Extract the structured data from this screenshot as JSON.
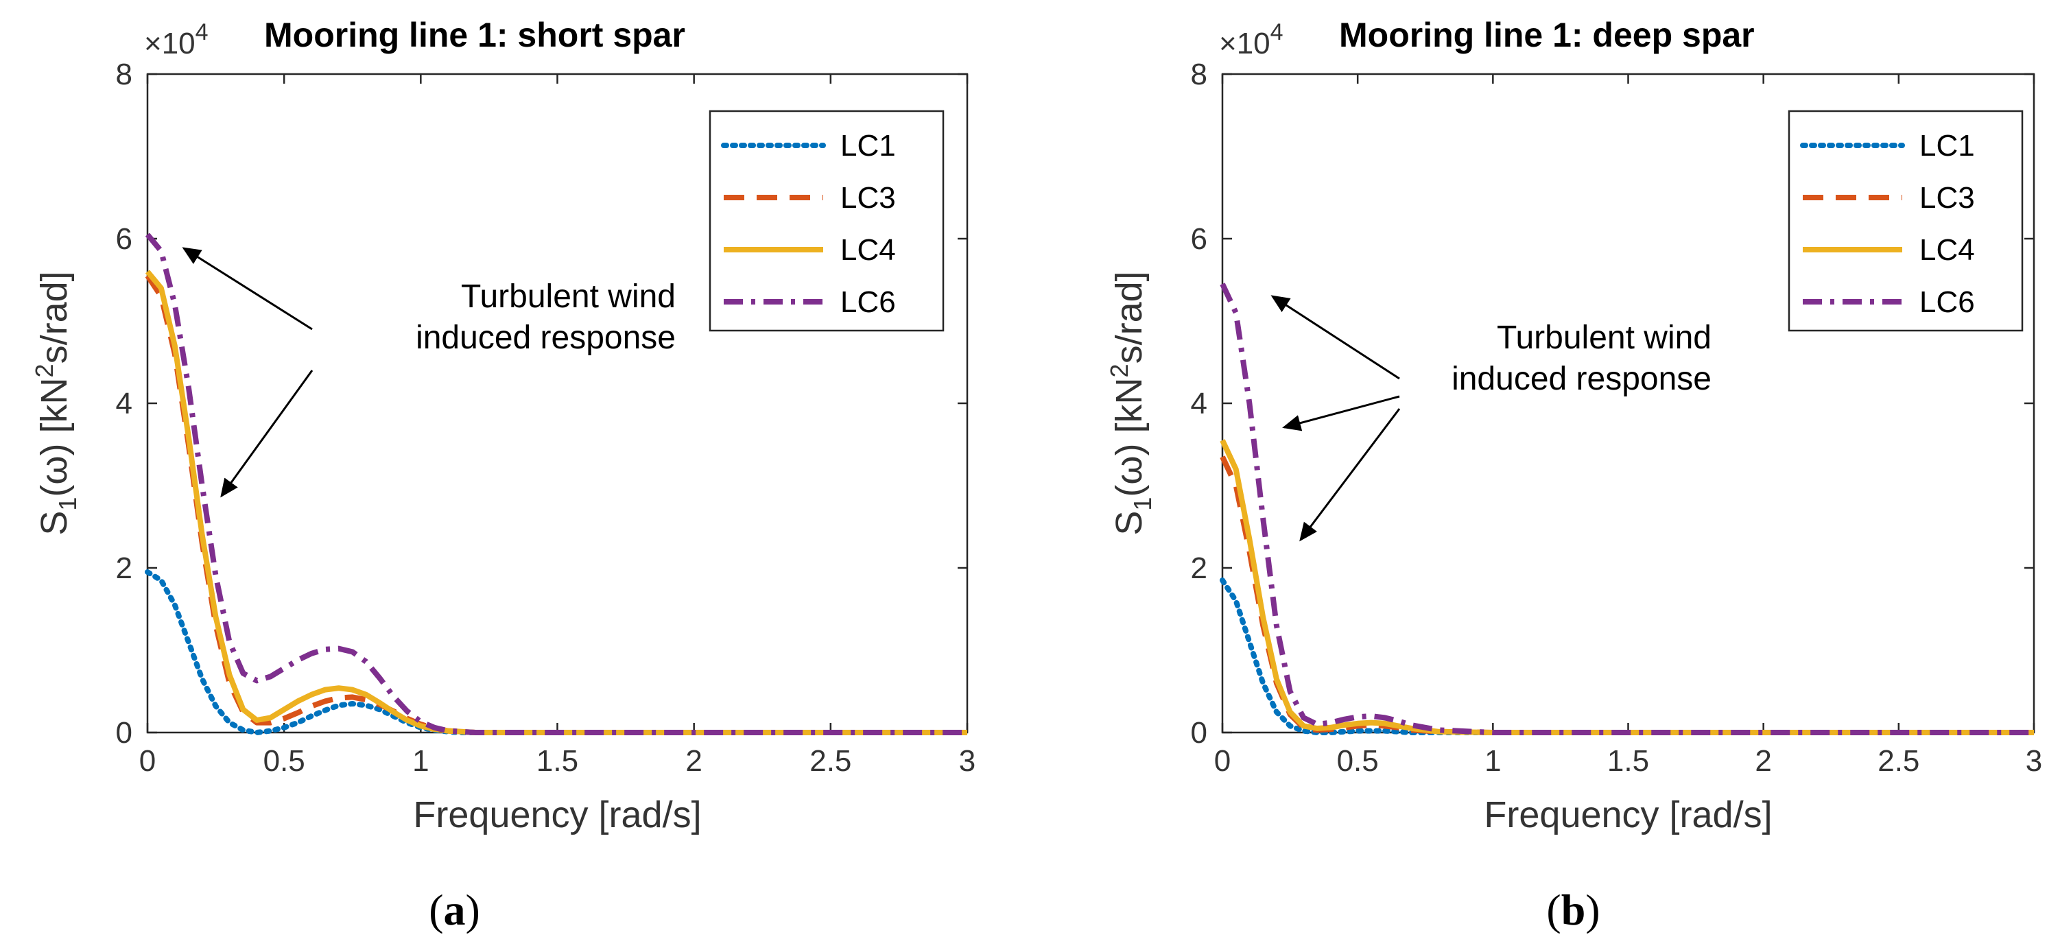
{
  "figure": {
    "ylabel_prefix": "S",
    "ylabel_sub": "1",
    "ylabel_omega": "(ω)",
    "ylabel_units_a": " [kN",
    "ylabel_units_sup": "2",
    "ylabel_units_b": "s/rad]",
    "exponent_base": "×10",
    "exponent_power": "4"
  },
  "chart_data": [
    {
      "type": "line",
      "panel_label": "(a)",
      "panel_letter": "a",
      "title": "Mooring line 1: short spar",
      "xlabel": "Frequency [rad/s]",
      "ylabel": "S1(ω) [kN2s/rad]",
      "xlim": [
        0,
        3
      ],
      "ylim": [
        0,
        8
      ],
      "y_scale": "×10^4",
      "xticks": [
        "0",
        "0.5",
        "1",
        "1.5",
        "2",
        "2.5",
        "3"
      ],
      "yticks": [
        "0",
        "2",
        "4",
        "6",
        "8"
      ],
      "legend": [
        "LC1",
        "LC3",
        "LC4",
        "LC6"
      ],
      "legend_position": "top-right",
      "annotation": [
        "Turbulent wind",
        "induced response"
      ],
      "series": [
        {
          "name": "LC1",
          "color": "#0072BD",
          "style": "dotted",
          "x": [
            0,
            0.05,
            0.1,
            0.15,
            0.2,
            0.25,
            0.3,
            0.35,
            0.4,
            0.45,
            0.5,
            0.55,
            0.6,
            0.65,
            0.7,
            0.75,
            0.8,
            0.85,
            0.9,
            0.95,
            1.0,
            1.05,
            1.1,
            1.15,
            1.2,
            1.3,
            1.5,
            2.0,
            2.5,
            3.0
          ],
          "y": [
            1.95,
            1.85,
            1.55,
            1.1,
            0.65,
            0.32,
            0.12,
            0.03,
            0.0,
            0.02,
            0.06,
            0.12,
            0.2,
            0.27,
            0.33,
            0.35,
            0.33,
            0.28,
            0.2,
            0.12,
            0.06,
            0.03,
            0.01,
            0.0,
            0.0,
            0,
            0,
            0,
            0,
            0
          ]
        },
        {
          "name": "LC3",
          "color": "#D95319",
          "style": "dashed",
          "x": [
            0,
            0.05,
            0.1,
            0.15,
            0.2,
            0.25,
            0.3,
            0.35,
            0.4,
            0.45,
            0.5,
            0.55,
            0.6,
            0.65,
            0.7,
            0.75,
            0.8,
            0.85,
            0.9,
            0.95,
            1.0,
            1.05,
            1.1,
            1.15,
            1.2,
            1.3,
            1.5,
            2.0,
            2.5,
            3.0
          ],
          "y": [
            5.55,
            5.3,
            4.6,
            3.5,
            2.3,
            1.3,
            0.6,
            0.25,
            0.12,
            0.12,
            0.17,
            0.24,
            0.32,
            0.38,
            0.42,
            0.43,
            0.4,
            0.34,
            0.26,
            0.17,
            0.1,
            0.05,
            0.02,
            0.01,
            0.0,
            0,
            0,
            0,
            0,
            0
          ]
        },
        {
          "name": "LC4",
          "color": "#EDB120",
          "style": "solid",
          "x": [
            0,
            0.05,
            0.1,
            0.15,
            0.2,
            0.25,
            0.3,
            0.35,
            0.4,
            0.45,
            0.5,
            0.55,
            0.6,
            0.65,
            0.7,
            0.75,
            0.8,
            0.85,
            0.9,
            0.95,
            1.0,
            1.05,
            1.1,
            1.15,
            1.2,
            1.3,
            1.5,
            2.0,
            2.5,
            3.0
          ],
          "y": [
            5.6,
            5.4,
            4.7,
            3.6,
            2.4,
            1.4,
            0.7,
            0.28,
            0.15,
            0.18,
            0.28,
            0.38,
            0.46,
            0.52,
            0.54,
            0.52,
            0.46,
            0.36,
            0.25,
            0.15,
            0.08,
            0.04,
            0.02,
            0.01,
            0.0,
            0,
            0,
            0,
            0,
            0
          ]
        },
        {
          "name": "LC6",
          "color": "#7E2F8E",
          "style": "dashdot",
          "x": [
            0,
            0.05,
            0.1,
            0.15,
            0.2,
            0.25,
            0.3,
            0.35,
            0.4,
            0.45,
            0.5,
            0.55,
            0.6,
            0.65,
            0.7,
            0.75,
            0.8,
            0.85,
            0.9,
            0.95,
            1.0,
            1.05,
            1.1,
            1.15,
            1.2,
            1.3,
            1.5,
            2.0,
            2.5,
            3.0
          ],
          "y": [
            6.05,
            5.85,
            5.2,
            4.2,
            3.0,
            1.9,
            1.1,
            0.72,
            0.63,
            0.68,
            0.78,
            0.88,
            0.96,
            1.01,
            1.02,
            0.98,
            0.86,
            0.66,
            0.44,
            0.26,
            0.13,
            0.06,
            0.02,
            0.01,
            0.0,
            0,
            0,
            0,
            0,
            0
          ]
        }
      ]
    },
    {
      "type": "line",
      "panel_label": "(b)",
      "panel_letter": "b",
      "title": "Mooring line 1: deep spar",
      "xlabel": "Frequency [rad/s]",
      "ylabel": "S1(ω) [kN2s/rad]",
      "xlim": [
        0,
        3
      ],
      "ylim": [
        0,
        8
      ],
      "y_scale": "×10^4",
      "xticks": [
        "0",
        "0.5",
        "1",
        "1.5",
        "2",
        "2.5",
        "3"
      ],
      "yticks": [
        "0",
        "2",
        "4",
        "6",
        "8"
      ],
      "legend": [
        "LC1",
        "LC3",
        "LC4",
        "LC6"
      ],
      "legend_position": "top-right",
      "annotation": [
        "Turbulent wind",
        "induced response"
      ],
      "series": [
        {
          "name": "LC1",
          "color": "#0072BD",
          "style": "dotted",
          "x": [
            0,
            0.05,
            0.1,
            0.15,
            0.2,
            0.25,
            0.3,
            0.35,
            0.4,
            0.45,
            0.5,
            0.55,
            0.6,
            0.65,
            0.7,
            0.8,
            1.0,
            1.5,
            2.0,
            2.5,
            3.0
          ],
          "y": [
            1.85,
            1.6,
            1.1,
            0.6,
            0.25,
            0.08,
            0.02,
            0.0,
            0.0,
            0.01,
            0.02,
            0.02,
            0.02,
            0.01,
            0.0,
            0,
            0,
            0,
            0,
            0,
            0
          ]
        },
        {
          "name": "LC3",
          "color": "#D95319",
          "style": "dashed",
          "x": [
            0,
            0.05,
            0.1,
            0.15,
            0.2,
            0.25,
            0.3,
            0.35,
            0.4,
            0.45,
            0.5,
            0.55,
            0.6,
            0.65,
            0.7,
            0.8,
            1.0,
            1.5,
            2.0,
            2.5,
            3.0
          ],
          "y": [
            3.35,
            3.0,
            2.2,
            1.3,
            0.6,
            0.22,
            0.06,
            0.03,
            0.04,
            0.06,
            0.08,
            0.09,
            0.08,
            0.06,
            0.03,
            0.01,
            0,
            0,
            0,
            0,
            0
          ]
        },
        {
          "name": "LC4",
          "color": "#EDB120",
          "style": "solid",
          "x": [
            0,
            0.05,
            0.1,
            0.15,
            0.2,
            0.25,
            0.3,
            0.35,
            0.4,
            0.45,
            0.5,
            0.55,
            0.6,
            0.65,
            0.7,
            0.8,
            1.0,
            1.5,
            2.0,
            2.5,
            3.0
          ],
          "y": [
            3.55,
            3.2,
            2.35,
            1.4,
            0.65,
            0.25,
            0.08,
            0.05,
            0.06,
            0.09,
            0.11,
            0.12,
            0.11,
            0.08,
            0.05,
            0.01,
            0,
            0,
            0,
            0,
            0
          ]
        },
        {
          "name": "LC6",
          "color": "#7E2F8E",
          "style": "dashdot",
          "x": [
            0,
            0.05,
            0.1,
            0.15,
            0.2,
            0.25,
            0.3,
            0.35,
            0.4,
            0.45,
            0.5,
            0.55,
            0.6,
            0.65,
            0.7,
            0.8,
            1.0,
            1.5,
            2.0,
            2.5,
            3.0
          ],
          "y": [
            5.45,
            5.1,
            4.0,
            2.6,
            1.3,
            0.5,
            0.18,
            0.1,
            0.12,
            0.16,
            0.19,
            0.2,
            0.18,
            0.14,
            0.09,
            0.03,
            0,
            0,
            0,
            0,
            0
          ]
        }
      ]
    }
  ]
}
